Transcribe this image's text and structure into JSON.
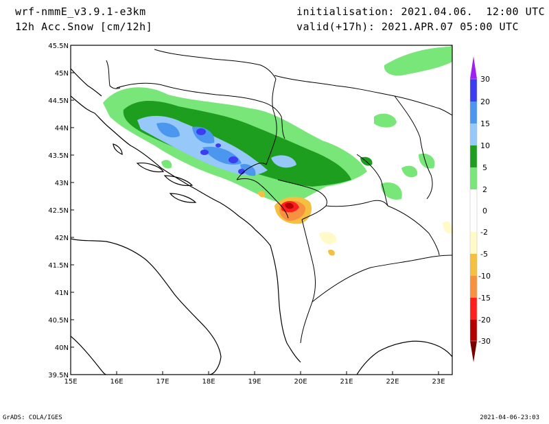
{
  "header": {
    "model": "wrf-nmmE_v3.9.1-e3km",
    "field": "12h Acc.Snow [cm/12h]",
    "init": "initialisation: 2021.04.06.  12:00 UTC",
    "valid": "valid(+17h): 2021.APR.07 05:00 UTC"
  },
  "footer": {
    "credit": "GrADS: COLA/IGES",
    "timestamp": "2021-04-06-23:03"
  },
  "map": {
    "lat_labels": [
      "45.5N",
      "45N",
      "44.5N",
      "44N",
      "43.5N",
      "43N",
      "42.5N",
      "42N",
      "41.5N",
      "41N",
      "40.5N",
      "40N",
      "39.5N"
    ],
    "lon_labels": [
      "15E",
      "16E",
      "17E",
      "18E",
      "19E",
      "20E",
      "21E",
      "22E",
      "23E"
    ]
  },
  "colorbar": {
    "levels": [
      "30",
      "20",
      "15",
      "10",
      "5",
      "2",
      "0",
      "-2",
      "-5",
      "-10",
      "-15",
      "-20",
      "-30"
    ],
    "colors": {
      "top_arrow": "#a020f0",
      "c20_30": "#3c3cf0",
      "c15_20": "#4b97f0",
      "c10_15": "#96c8fa",
      "c5_10": "#1e9e1e",
      "c2_5": "#78e678",
      "c0_2": "#ffffff",
      "cm2_0": "#ffffff",
      "cm5_m2": "#fffac8",
      "cm10_m5": "#f5c040",
      "cm15_m10": "#f79140",
      "cm20_m15": "#ff1e1e",
      "cm30_m20": "#b40000",
      "bottom_arrow": "#7a0000"
    }
  }
}
